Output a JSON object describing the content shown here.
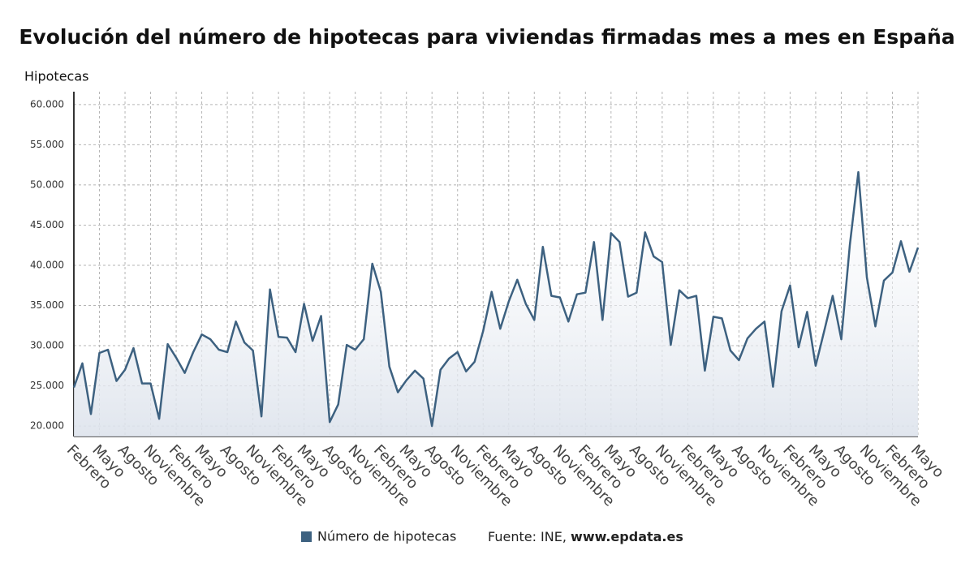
{
  "chart_data": {
    "type": "line",
    "title": "Evolución del número de hipotecas para viviendas firmadas mes a mes en España",
    "y_label": "Hipotecas",
    "source": "Fuente: INE,",
    "source_site": "www.epdata.es",
    "categories": [
      "Febrero",
      null,
      null,
      "Mayo",
      null,
      null,
      "Agosto",
      null,
      null,
      "Noviembre",
      null,
      null,
      "Febrero",
      null,
      null,
      "Mayo",
      null,
      null,
      "Agosto",
      null,
      null,
      "Noviembre",
      null,
      null,
      "Febrero",
      null,
      null,
      "Mayo",
      null,
      null,
      "Agosto",
      null,
      null,
      "Noviembre",
      null,
      null,
      "Febrero",
      null,
      null,
      "Mayo",
      null,
      null,
      "Agosto",
      null,
      null,
      "Noviembre",
      null,
      null,
      "Febrero",
      null,
      null,
      "Mayo",
      null,
      null,
      "Agosto",
      null,
      null,
      "Noviembre",
      null,
      null,
      "Febrero",
      null,
      null,
      "Mayo",
      null,
      null,
      "Agosto",
      null,
      null,
      "Noviembre",
      null,
      null,
      "Febrero",
      null,
      null,
      "Mayo",
      null,
      null,
      "Agosto",
      null,
      null,
      "Noviembre",
      null,
      null,
      "Febrero",
      null,
      null,
      "Mayo",
      null,
      null,
      "Agosto",
      null,
      null,
      "Noviembre",
      null,
      null,
      "Febrero",
      null,
      null,
      "Mayo"
    ],
    "series": [
      {
        "name": "Número de hipotecas",
        "color": "#3d6180",
        "values": [
          24800,
          27800,
          21500,
          29100,
          29500,
          25600,
          27000,
          29700,
          25300,
          25300,
          20900,
          30200,
          28500,
          26600,
          29200,
          31400,
          30800,
          29500,
          29200,
          33000,
          30400,
          29400,
          21200,
          37000,
          31100,
          31000,
          29200,
          35200,
          30600,
          33700,
          20500,
          22700,
          30100,
          29500,
          30800,
          40200,
          36700,
          27400,
          24200,
          25700,
          26900,
          25900,
          20000,
          27000,
          28400,
          29200,
          26800,
          28000,
          31800,
          36700,
          32100,
          35500,
          38200,
          35200,
          33200,
          42300,
          36200,
          36000,
          33000,
          36400,
          36600,
          42900,
          33200,
          44000,
          42900,
          36100,
          36600,
          44100,
          41100,
          40400,
          30100,
          36900,
          35900,
          36200,
          26900,
          33600,
          33400,
          29400,
          28200,
          30900,
          32100,
          33000,
          24900,
          34300,
          37500,
          29800,
          34200,
          27500,
          31800,
          36200,
          30800,
          42500,
          51600,
          38500,
          32400,
          38100,
          39100,
          43000,
          39200,
          42200
        ]
      }
    ],
    "ylim": [
      18700,
      61600
    ],
    "yticks": [
      {
        "value": 20000,
        "label": "20.000"
      },
      {
        "value": 25000,
        "label": "25.000"
      },
      {
        "value": 30000,
        "label": "30.000"
      },
      {
        "value": 35000,
        "label": "35.000"
      },
      {
        "value": 40000,
        "label": "40.000"
      },
      {
        "value": 45000,
        "label": "45.000"
      },
      {
        "value": 50000,
        "label": "50.000"
      },
      {
        "value": 55000,
        "label": "55.000"
      },
      {
        "value": 60000,
        "label": "60.000"
      }
    ],
    "grid": true
  }
}
